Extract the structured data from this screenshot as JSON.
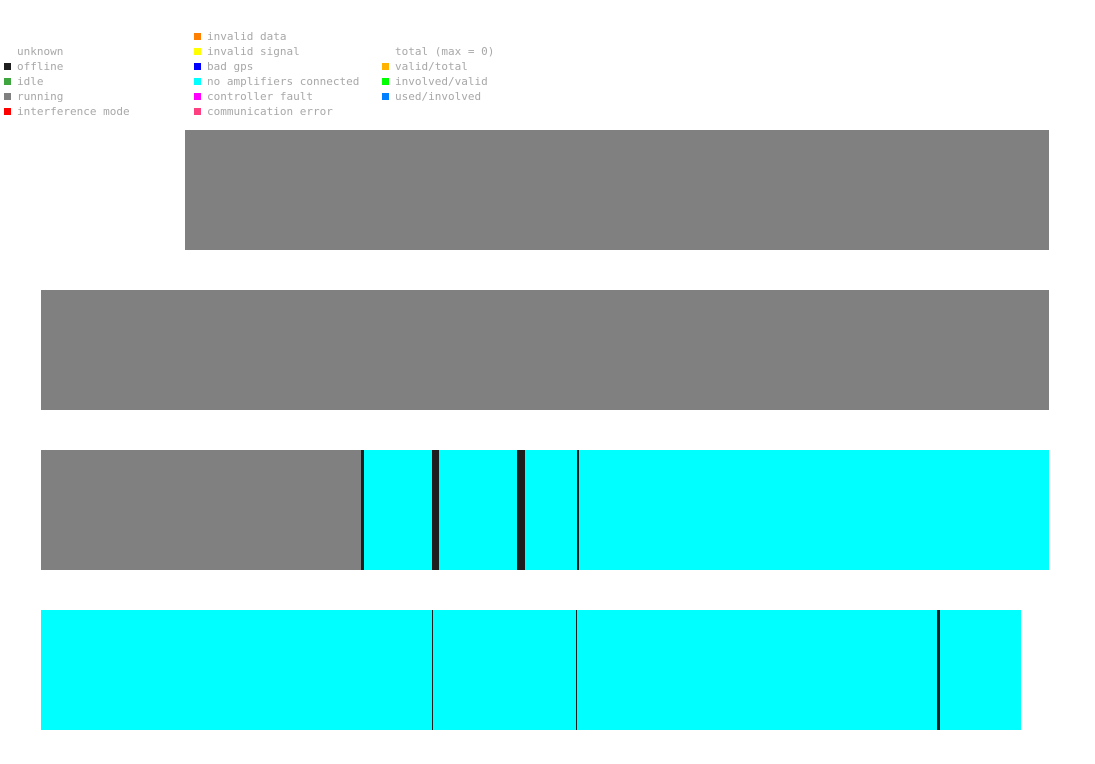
{
  "legend_status": [
    {
      "label": "unknown",
      "color": ""
    },
    {
      "label": "offline",
      "color": "#1e1e1e"
    },
    {
      "label": "idle",
      "color": "#3fa63f"
    },
    {
      "label": "running",
      "color": "#808080"
    },
    {
      "label": "interference mode",
      "color": "#ff0000"
    }
  ],
  "legend_errors": [
    {
      "label": "invalid data",
      "color": "#ff7f00"
    },
    {
      "label": "invalid signal",
      "color": "#ffff00"
    },
    {
      "label": "bad gps",
      "color": "#0000ff"
    },
    {
      "label": "no amplifiers connected",
      "color": "#00ffff"
    },
    {
      "label": "controller fault",
      "color": "#ff00ff"
    },
    {
      "label": "communication error",
      "color": "#ff4080"
    }
  ],
  "legend_ratios": [
    {
      "label": "total (max = 0)",
      "color": ""
    },
    {
      "label": "valid/total",
      "color": "#ffb300"
    },
    {
      "label": "involved/valid",
      "color": "#00ff00"
    },
    {
      "label": "used/involved",
      "color": "#0080ff"
    }
  ],
  "chart_data": {
    "type": "timeline",
    "x_range": [
      0,
      1008
    ],
    "rows": [
      {
        "segments": [
          {
            "start": 144,
            "end": 1008,
            "status": "running",
            "color": "#808080"
          }
        ]
      },
      {
        "segments": [
          {
            "start": 0,
            "end": 1008,
            "status": "running",
            "color": "#808080"
          }
        ]
      },
      {
        "segments": [
          {
            "start": 0,
            "end": 320,
            "status": "running",
            "color": "#808080"
          },
          {
            "start": 320,
            "end": 323,
            "status": "offline",
            "color": "#1e1e1e"
          },
          {
            "start": 323,
            "end": 391,
            "status": "no amplifiers connected",
            "color": "#00ffff"
          },
          {
            "start": 391,
            "end": 398,
            "status": "offline",
            "color": "#1e1e1e"
          },
          {
            "start": 398,
            "end": 476,
            "status": "no amplifiers connected",
            "color": "#00ffff"
          },
          {
            "start": 476,
            "end": 484,
            "status": "offline",
            "color": "#1e1e1e"
          },
          {
            "start": 484,
            "end": 536,
            "status": "no amplifiers connected",
            "color": "#00ffff"
          },
          {
            "start": 536,
            "end": 538,
            "status": "offline",
            "color": "#1e1e1e"
          },
          {
            "start": 538,
            "end": 1008,
            "status": "no amplifiers connected",
            "color": "#00ffff"
          }
        ]
      },
      {
        "segments": [
          {
            "start": 0,
            "end": 391,
            "status": "no amplifiers connected",
            "color": "#00ffff"
          },
          {
            "start": 391,
            "end": 392,
            "status": "offline",
            "color": "#1e1e1e"
          },
          {
            "start": 392,
            "end": 535,
            "status": "no amplifiers connected",
            "color": "#00ffff"
          },
          {
            "start": 535,
            "end": 536,
            "status": "offline",
            "color": "#1e1e1e"
          },
          {
            "start": 536,
            "end": 896,
            "status": "no amplifiers connected",
            "color": "#00ffff"
          },
          {
            "start": 896,
            "end": 899,
            "status": "offline",
            "color": "#1e1e1e"
          },
          {
            "start": 899,
            "end": 980,
            "status": "no amplifiers connected",
            "color": "#00ffff"
          }
        ]
      }
    ]
  }
}
